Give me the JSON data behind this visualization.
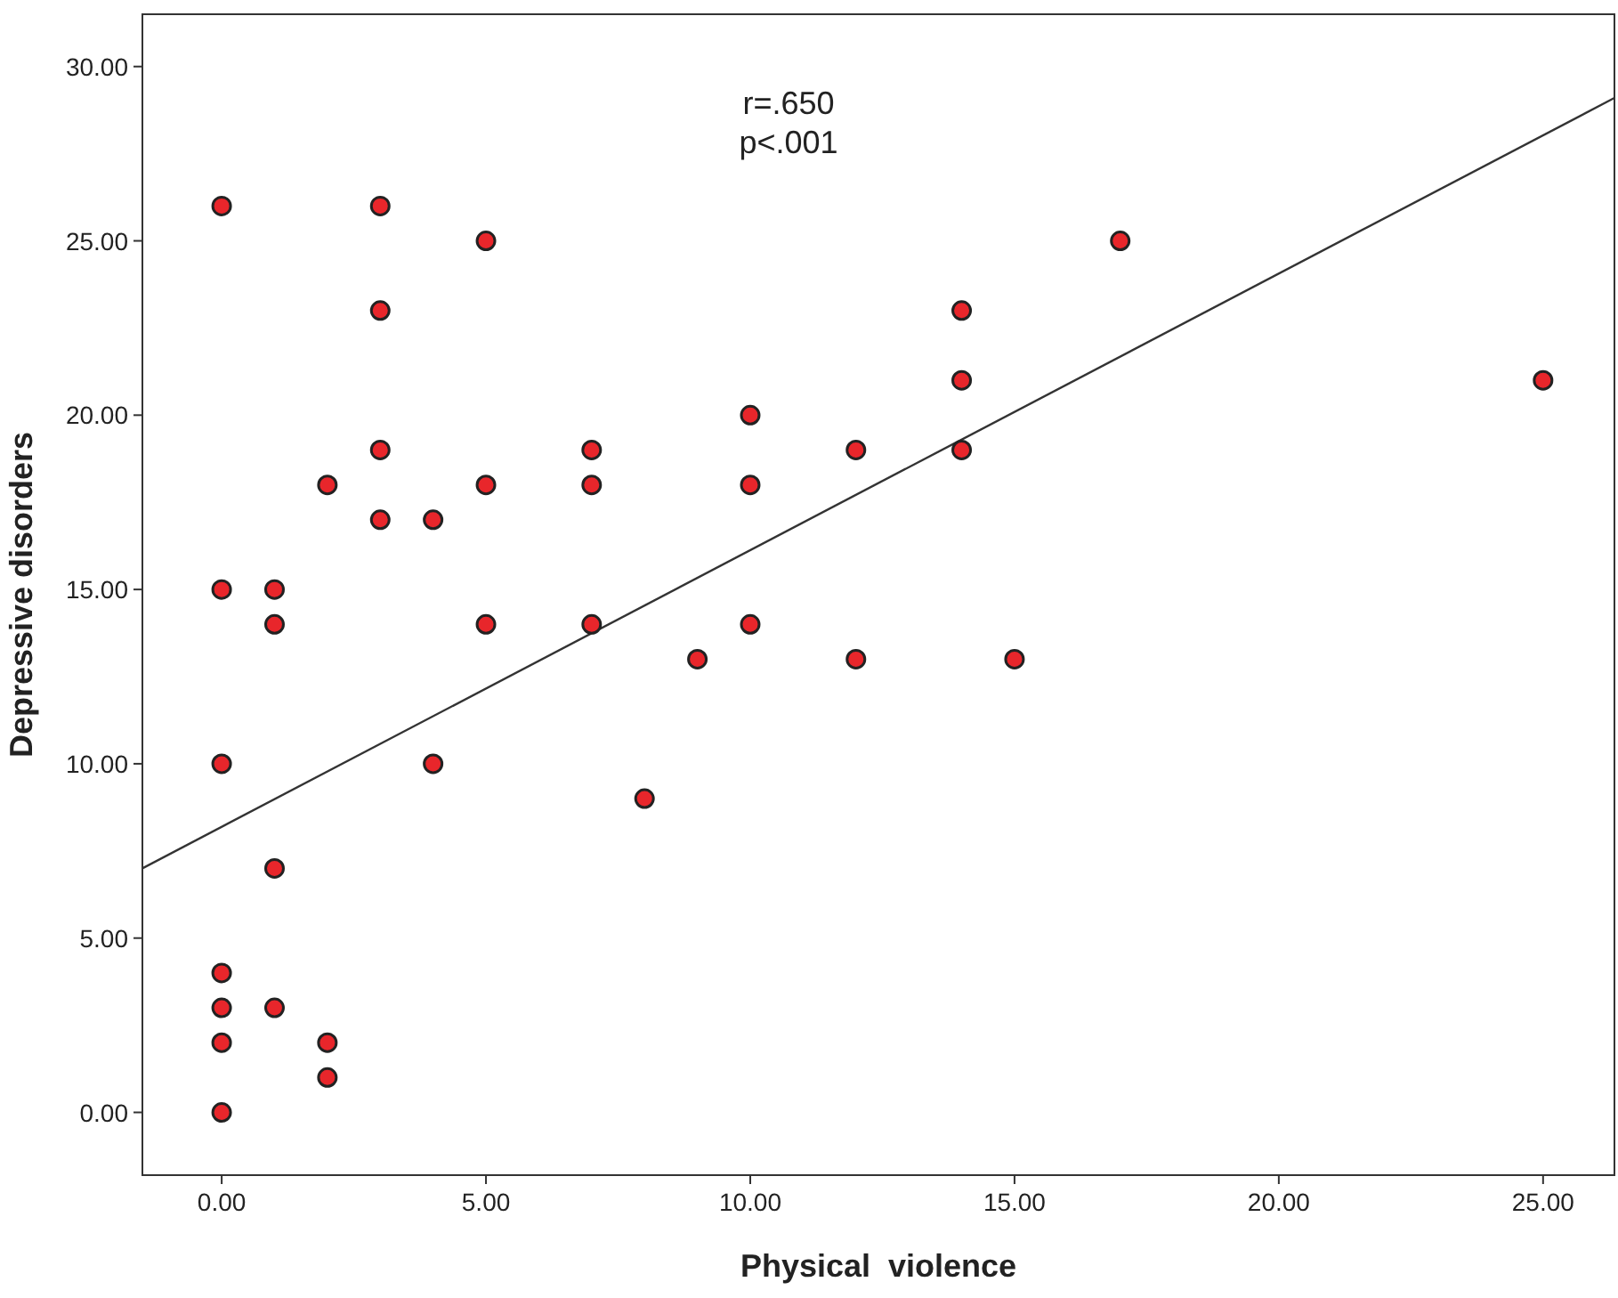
{
  "chart_data": {
    "type": "scatter",
    "xlabel": "Physical  violence",
    "ylabel": "Depressive disorders",
    "xlim": [
      -1.5,
      26.35
    ],
    "ylim": [
      -1.8,
      31.5
    ],
    "xticks": [
      {
        "value": 0,
        "label": "0.00"
      },
      {
        "value": 5,
        "label": "5.00"
      },
      {
        "value": 10,
        "label": "10.00"
      },
      {
        "value": 15,
        "label": "15.00"
      },
      {
        "value": 20,
        "label": "20.00"
      },
      {
        "value": 25,
        "label": "25.00"
      }
    ],
    "yticks": [
      {
        "value": 0,
        "label": "0.00"
      },
      {
        "value": 5,
        "label": "5.00"
      },
      {
        "value": 10,
        "label": "10.00"
      },
      {
        "value": 15,
        "label": "15.00"
      },
      {
        "value": 20,
        "label": "20.00"
      },
      {
        "value": 25,
        "label": "25.00"
      },
      {
        "value": 30,
        "label": "30.00"
      }
    ],
    "grid": false,
    "marker": "circle",
    "annotations": [
      "r=.650",
      "p<.001"
    ],
    "series": [
      {
        "color": "#e8262b",
        "x": [
          0,
          0,
          0,
          0,
          0,
          0,
          0,
          1,
          1,
          1,
          1,
          2,
          2,
          2,
          3,
          3,
          3,
          3,
          4,
          4,
          5,
          5,
          5,
          7,
          7,
          7,
          8,
          9,
          10,
          10,
          10,
          12,
          12,
          14,
          14,
          14,
          15,
          17,
          25
        ],
        "values": [
          26,
          15,
          10,
          4,
          3,
          2,
          0,
          15,
          14,
          7,
          3,
          18,
          2,
          1,
          26,
          23,
          19,
          17,
          17,
          10,
          25,
          18,
          14,
          19,
          18,
          14,
          9,
          13,
          20,
          18,
          14,
          19,
          13,
          23,
          21,
          19,
          13,
          25,
          21
        ]
      },
      {
        "type": "line",
        "color": "#333333",
        "marker": "none",
        "x": [
          -1.5,
          26.35
        ],
        "values": [
          7.0,
          29.1
        ]
      }
    ]
  }
}
